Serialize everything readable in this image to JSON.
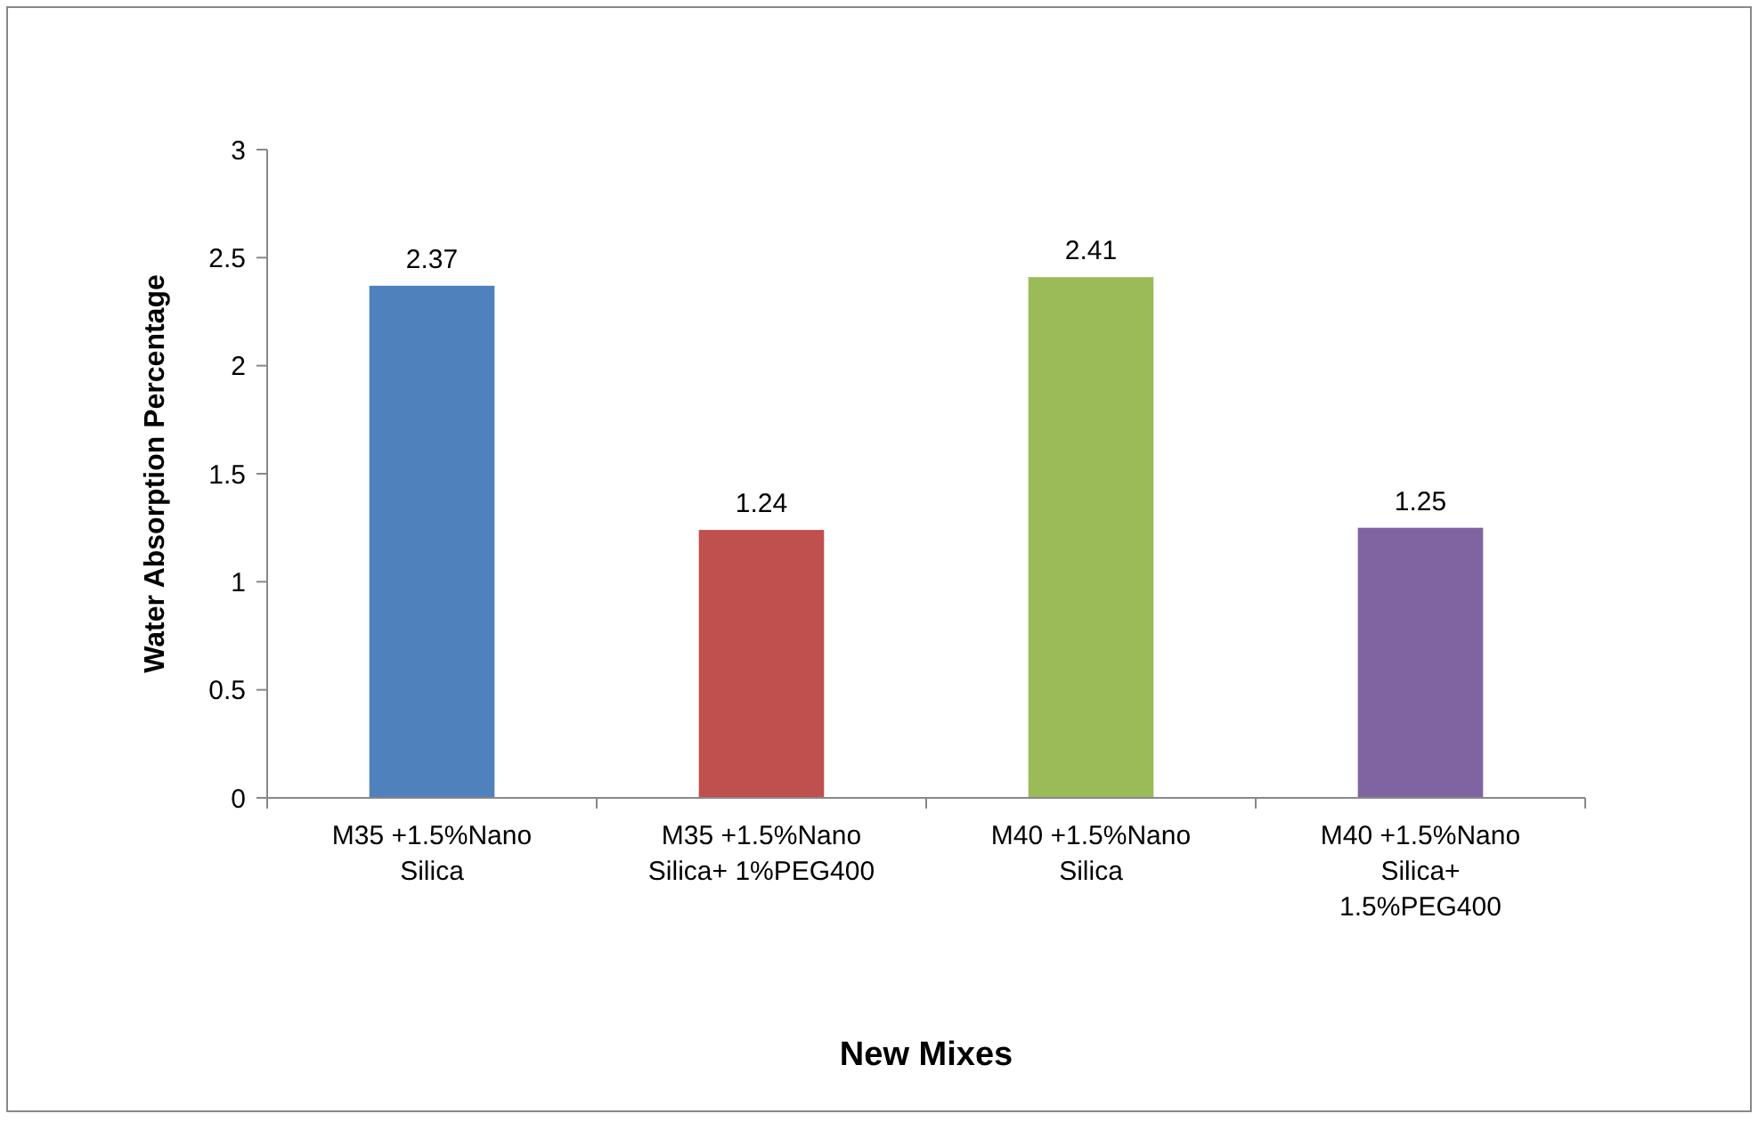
{
  "chart_data": {
    "type": "bar",
    "xlabel": "New Mixes",
    "ylabel": "Water Absorption Percentage",
    "categories": [
      "M35 +1.5%Nano Silica",
      "M35 +1.5%Nano Silica+ 1%PEG400",
      "M40 +1.5%Nano Silica",
      "M40 +1.5%Nano Silica+ 1.5%PEG400"
    ],
    "values": [
      2.37,
      1.24,
      2.41,
      1.25
    ],
    "colors": [
      "#4f81bd",
      "#c0504d",
      "#9bbb59",
      "#8064a2"
    ],
    "ylim": [
      0,
      3
    ],
    "yticks": [
      0,
      0.5,
      1,
      1.5,
      2,
      2.5,
      3
    ],
    "data_labels": true
  }
}
